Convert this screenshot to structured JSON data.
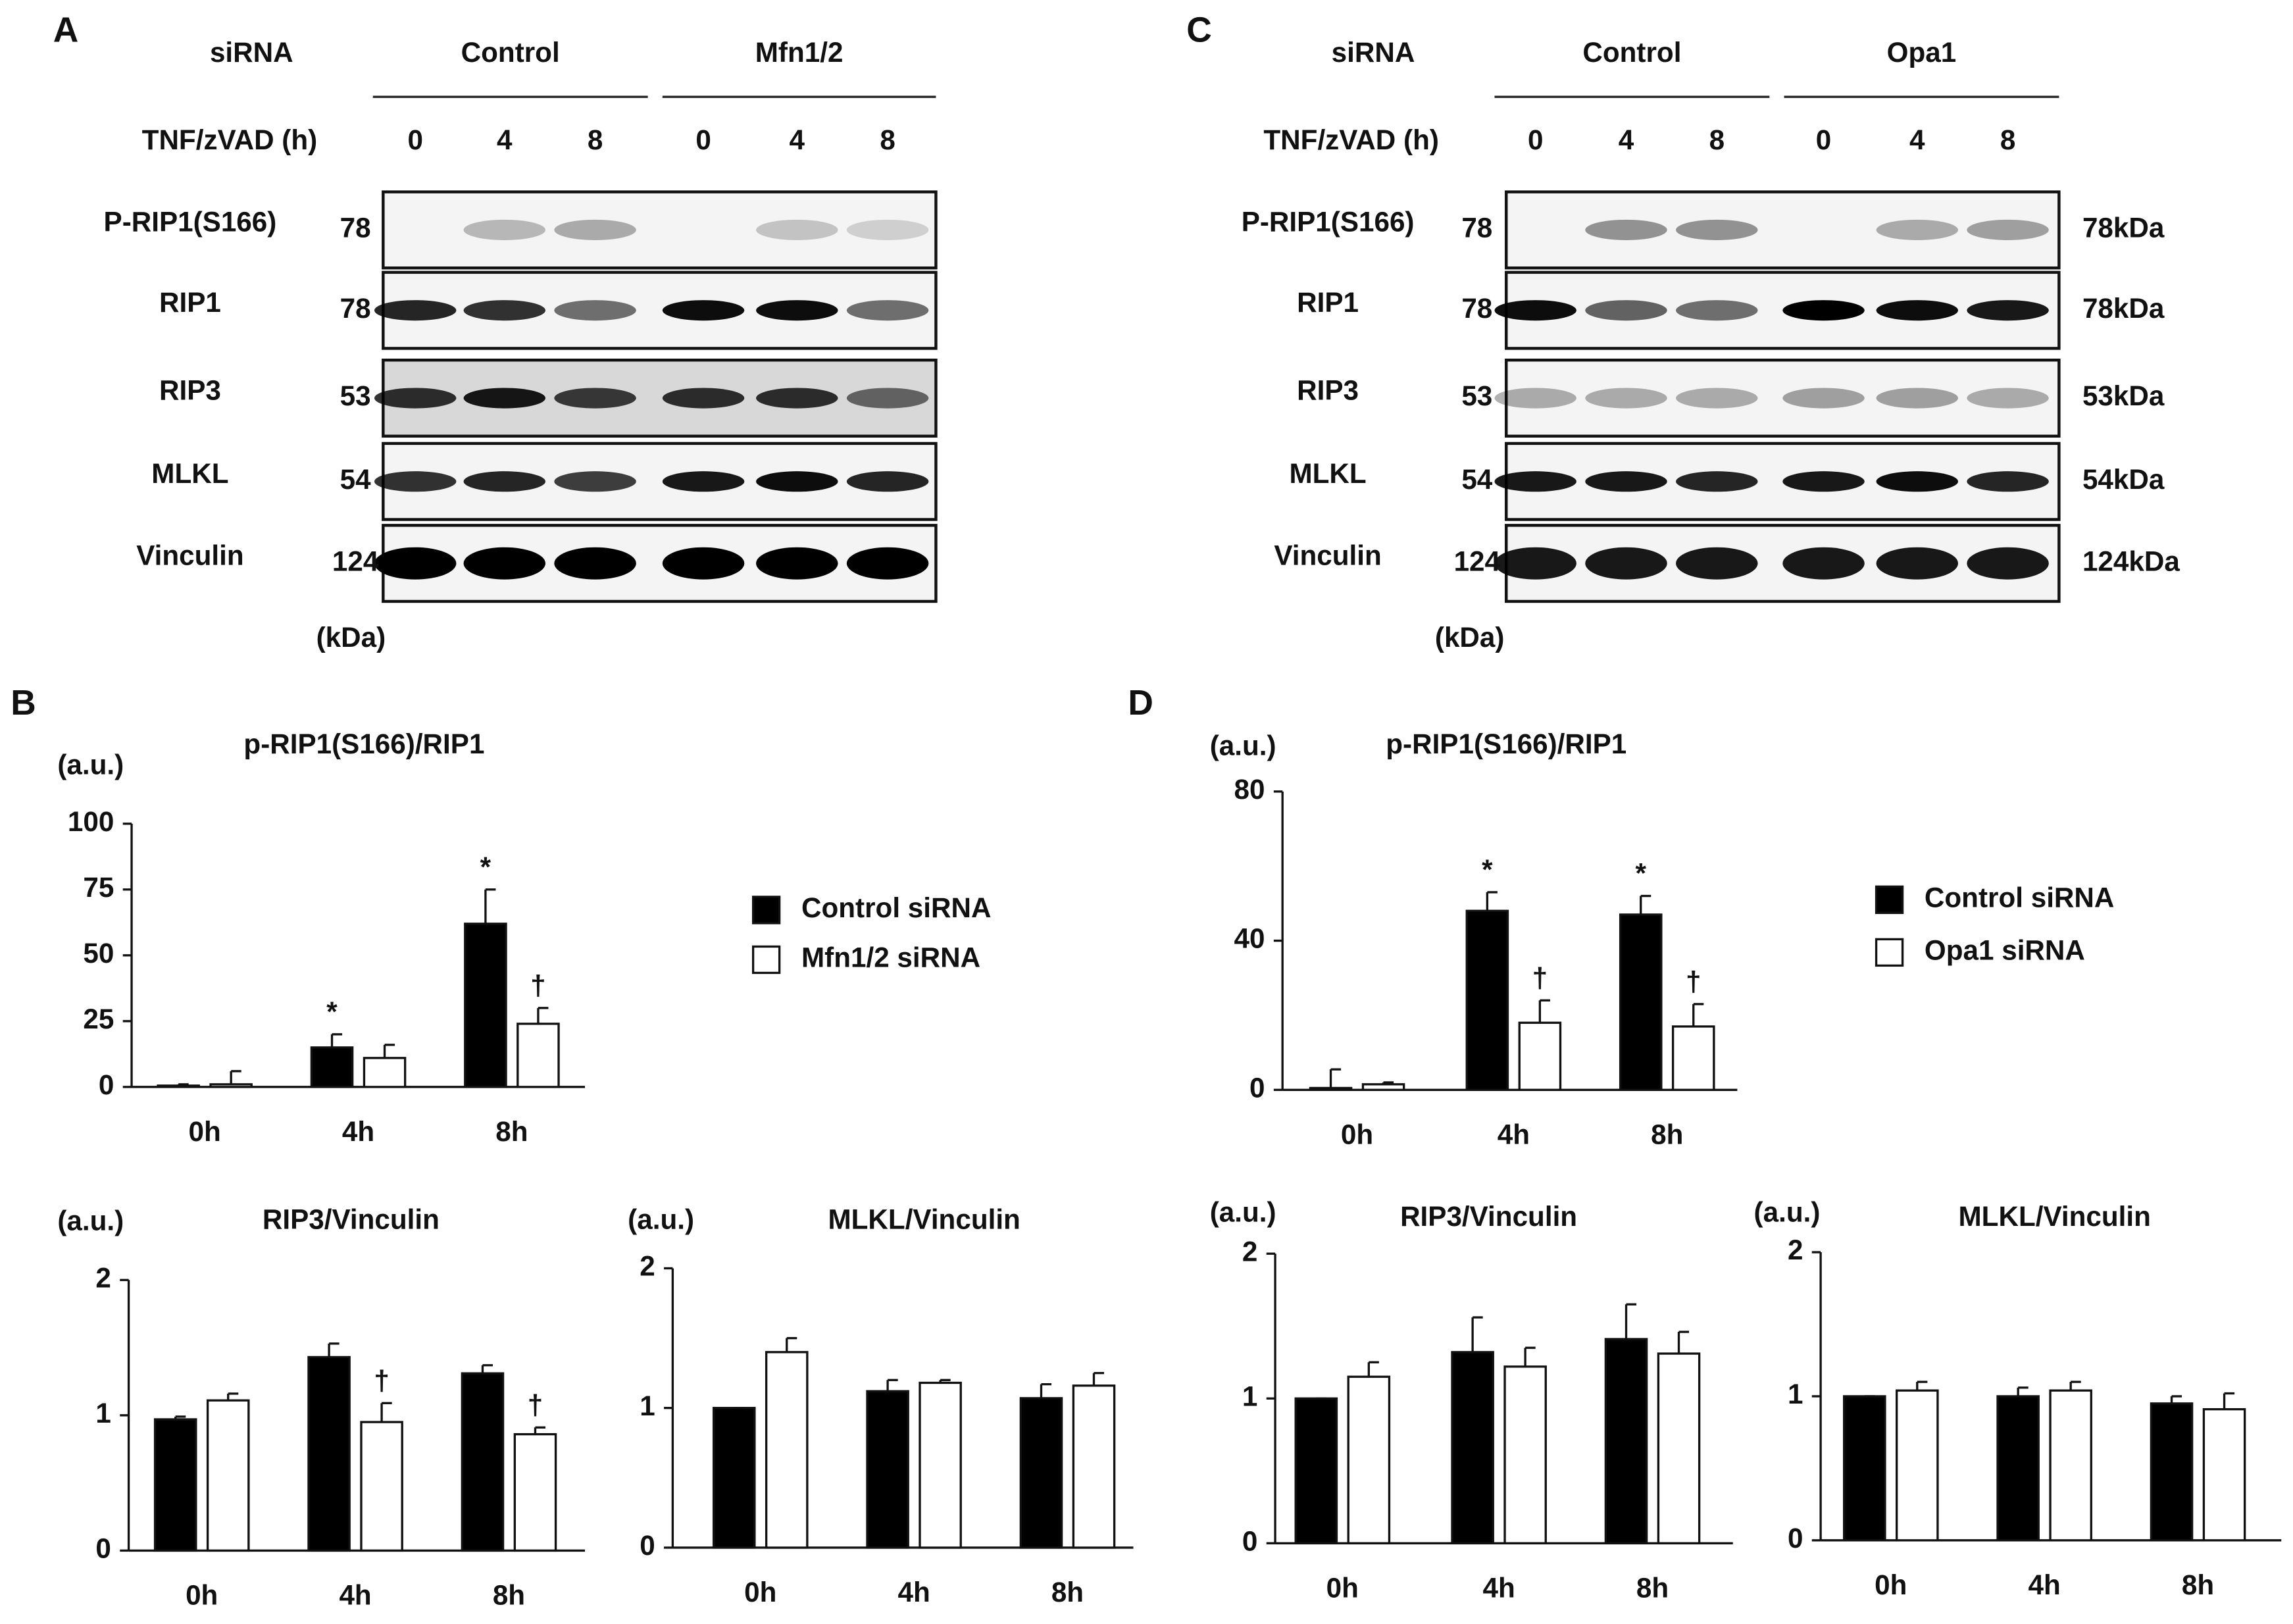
{
  "panel_labels": [
    "A",
    "B",
    "C",
    "D"
  ],
  "blots": [
    {
      "sirna_label": "siRNA",
      "treatment_label": "TNF/zVAD (h)",
      "groups": [
        "Control",
        "Mfn1/2"
      ],
      "timepoints": [
        "0",
        "4",
        "8",
        "0",
        "4",
        "8"
      ],
      "rows": [
        {
          "name": "P-RIP1(S166)",
          "mw": "78"
        },
        {
          "name": "RIP1",
          "mw": "78"
        },
        {
          "name": "RIP3",
          "mw": "53"
        },
        {
          "name": "MLKL",
          "mw": "54"
        },
        {
          "name": "Vinculin",
          "mw": "124"
        }
      ],
      "unit": "(kDa)"
    },
    {
      "sirna_label": "siRNA",
      "treatment_label": "TNF/zVAD (h)",
      "groups": [
        "Control",
        "Opa1"
      ],
      "timepoints": [
        "0",
        "4",
        "8",
        "0",
        "4",
        "8"
      ],
      "rows": [
        {
          "name": "P-RIP1(S166)",
          "mw": "78",
          "size": "78kDa"
        },
        {
          "name": "RIP1",
          "mw": "78",
          "size": "78kDa"
        },
        {
          "name": "RIP3",
          "mw": "53",
          "size": "53kDa"
        },
        {
          "name": "MLKL",
          "mw": "54",
          "size": "54kDa"
        },
        {
          "name": "Vinculin",
          "mw": "124",
          "size": "124kDa"
        }
      ],
      "unit": "(kDa)"
    }
  ],
  "chart_data": [
    {
      "type": "bar",
      "title": "p-RIP1(S166)/RIP1",
      "ylabel": "(a.u.)",
      "categories": [
        "0h",
        "4h",
        "8h"
      ],
      "ylim": [
        0,
        100
      ],
      "yticks": [
        0,
        25,
        50,
        75,
        100
      ],
      "legend": true,
      "series": [
        {
          "name": "Control siRNA",
          "color": "#000000",
          "values": [
            0.5,
            15,
            62
          ],
          "errors": [
            0.5,
            5,
            13
          ],
          "markers": [
            null,
            "*",
            "*"
          ]
        },
        {
          "name": "Mfn1/2 siRNA",
          "color": "#ffffff",
          "values": [
            1,
            11,
            24
          ],
          "errors": [
            5,
            5,
            6
          ],
          "markers": [
            null,
            null,
            "†"
          ]
        }
      ]
    },
    {
      "type": "bar",
      "title": "RIP3/Vinculin",
      "ylabel": "(a.u.)",
      "categories": [
        "0h",
        "4h",
        "8h"
      ],
      "ylim": [
        0,
        2
      ],
      "yticks": [
        0,
        1,
        2
      ],
      "series": [
        {
          "color": "#000000",
          "values": [
            0.97,
            1.43,
            1.31
          ],
          "errors": [
            0.02,
            0.1,
            0.06
          ],
          "markers": [
            null,
            null,
            null
          ]
        },
        {
          "color": "#ffffff",
          "values": [
            1.11,
            0.95,
            0.86
          ],
          "errors": [
            0.05,
            0.14,
            0.05
          ],
          "markers": [
            null,
            "†",
            "†"
          ]
        }
      ]
    },
    {
      "type": "bar",
      "title": "MLKL/Vinculin",
      "ylabel": "(a.u.)",
      "categories": [
        "0h",
        "4h",
        "8h"
      ],
      "ylim": [
        0,
        2
      ],
      "yticks": [
        0,
        1,
        2
      ],
      "series": [
        {
          "color": "#000000",
          "values": [
            1.0,
            1.12,
            1.07
          ],
          "errors": [
            0,
            0.08,
            0.1
          ],
          "markers": [
            null,
            null,
            null
          ]
        },
        {
          "color": "#ffffff",
          "values": [
            1.4,
            1.18,
            1.16
          ],
          "errors": [
            0.1,
            0.02,
            0.09
          ],
          "markers": [
            null,
            null,
            null
          ]
        }
      ]
    },
    {
      "type": "bar",
      "title": "p-RIP1(S166)/RIP1",
      "ylabel": "(a.u.)",
      "categories": [
        "0h",
        "4h",
        "8h"
      ],
      "ylim": [
        0,
        80
      ],
      "yticks": [
        0,
        40,
        80
      ],
      "legend": true,
      "series": [
        {
          "name": "Control siRNA",
          "color": "#000000",
          "values": [
            0.5,
            48,
            47
          ],
          "errors": [
            5,
            5,
            5
          ],
          "markers": [
            null,
            "*",
            "*"
          ]
        },
        {
          "name": "Opa1 siRNA",
          "color": "#ffffff",
          "values": [
            1.5,
            18,
            17
          ],
          "errors": [
            0.5,
            6,
            6
          ],
          "markers": [
            null,
            "†",
            "†"
          ]
        }
      ]
    },
    {
      "type": "bar",
      "title": "RIP3/Vinculin",
      "ylabel": "(a.u.)",
      "categories": [
        "0h",
        "4h",
        "8h"
      ],
      "ylim": [
        0,
        2
      ],
      "yticks": [
        0,
        1,
        2
      ],
      "series": [
        {
          "color": "#000000",
          "values": [
            1.0,
            1.32,
            1.41
          ],
          "errors": [
            0,
            0.24,
            0.24
          ],
          "markers": [
            null,
            null,
            null
          ]
        },
        {
          "color": "#ffffff",
          "values": [
            1.15,
            1.22,
            1.31
          ],
          "errors": [
            0.1,
            0.13,
            0.15
          ],
          "markers": [
            null,
            null,
            null
          ]
        }
      ]
    },
    {
      "type": "bar",
      "title": "MLKL/Vinculin",
      "ylabel": "(a.u.)",
      "categories": [
        "0h",
        "4h",
        "8h"
      ],
      "ylim": [
        0,
        2
      ],
      "yticks": [
        0,
        1,
        2
      ],
      "series": [
        {
          "color": "#000000",
          "values": [
            1.0,
            1.0,
            0.95
          ],
          "errors": [
            0,
            0.06,
            0.05
          ],
          "markers": [
            null,
            null,
            null
          ]
        },
        {
          "color": "#ffffff",
          "values": [
            1.04,
            1.04,
            0.91
          ],
          "errors": [
            0.06,
            0.06,
            0.11
          ],
          "markers": [
            null,
            null,
            null
          ]
        }
      ]
    }
  ]
}
